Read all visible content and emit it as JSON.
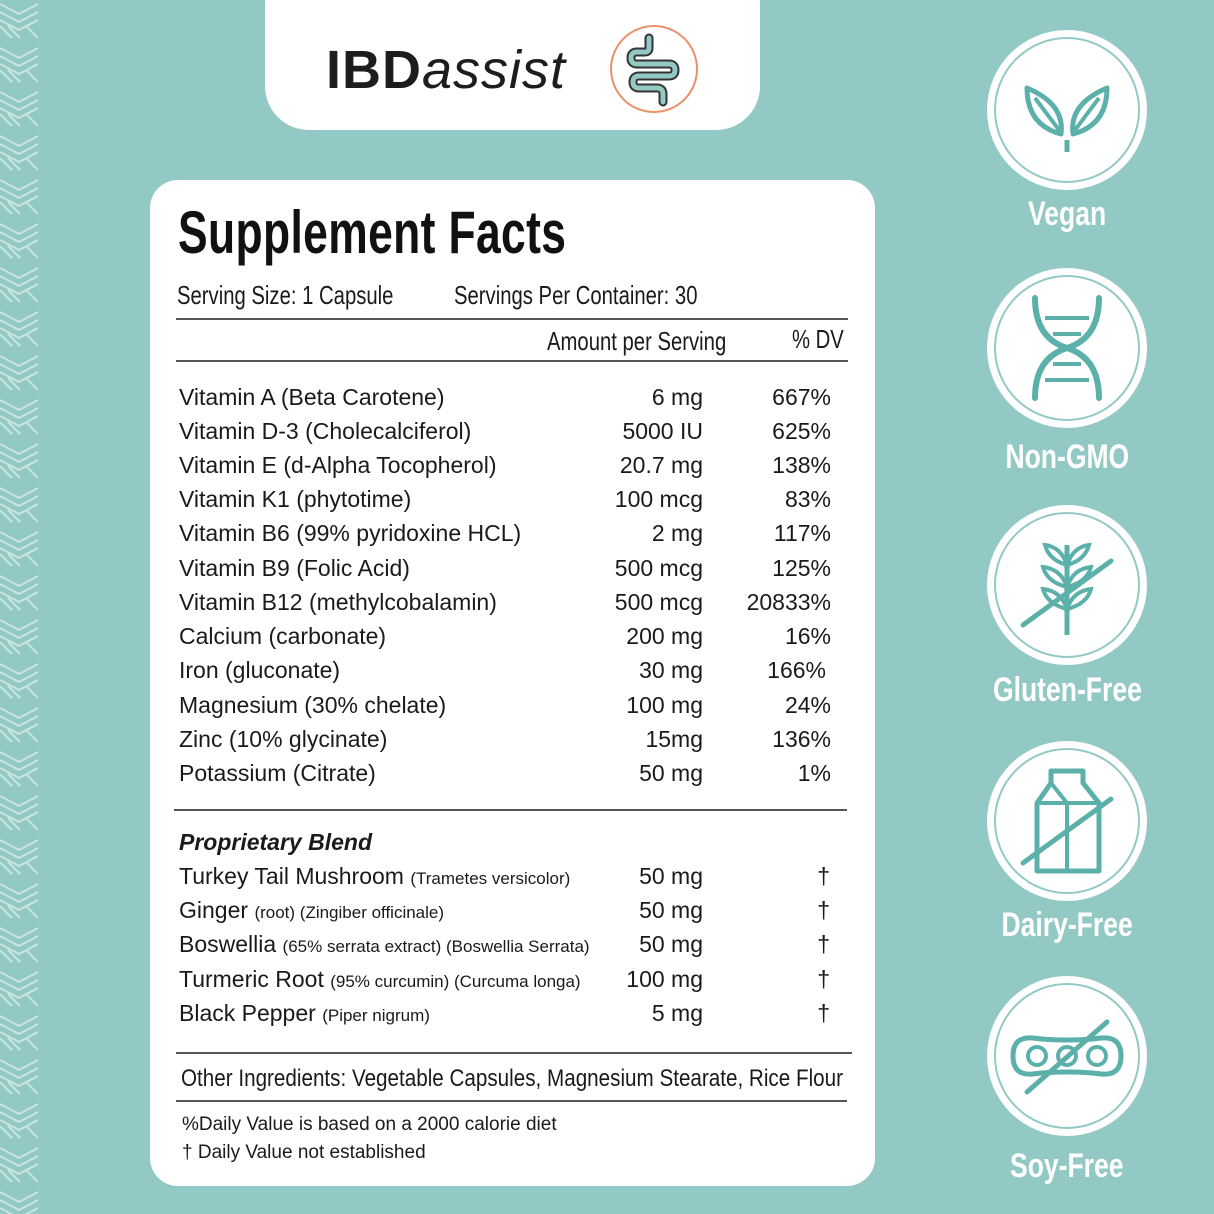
{
  "brand": {
    "name_bold": "IBD",
    "name_italic": "assist",
    "logo_icon": "intestine-icon",
    "colors": {
      "teal": "#93c9c5",
      "accent": "#e8906a",
      "dark": "#1a1a1a"
    }
  },
  "facts": {
    "title": "Supplement Facts",
    "serving_size": "Serving Size: 1 Capsule",
    "servings_per_container": "Servings Per Container: 30",
    "col_amount": "Amount per Serving",
    "col_dv": "% DV",
    "nutrients": [
      {
        "name": "Vitamin A (Beta Carotene)",
        "amount": "6 mg",
        "dv": "667%"
      },
      {
        "name": "Vitamin D-3 (Cholecalciferol)",
        "amount": "5000 IU",
        "dv": "625%"
      },
      {
        "name": "Vitamin E (d-Alpha Tocopherol)",
        "amount": "20.7 mg",
        "dv": "138%"
      },
      {
        "name": "Vitamin K1 (phytotime)",
        "amount": "100 mcg",
        "dv": "83%"
      },
      {
        "name": "Vitamin B6 (99% pyridoxine HCL)",
        "amount": "2 mg",
        "dv": "117%"
      },
      {
        "name": "Vitamin B9 (Folic Acid)",
        "amount": "500 mcg",
        "dv": "125%"
      },
      {
        "name": "Vitamin B12 (methylcobalamin)",
        "amount": "500 mcg",
        "dv": "20833%"
      },
      {
        "name": "Calcium (carbonate)",
        "amount": "200 mg",
        "dv": "16%"
      },
      {
        "name": "Iron (gluconate)",
        "amount": "30 mg",
        "dv": "166%"
      },
      {
        "name": "Magnesium (30% chelate)",
        "amount": "100 mg",
        "dv": "24%"
      },
      {
        "name": "Zinc (10% glycinate)",
        "amount": "15mg",
        "dv": "136%"
      },
      {
        "name": "Potassium (Citrate)",
        "amount": "50 mg",
        "dv": "1%"
      }
    ],
    "blend_title": "Proprietary Blend",
    "blend": [
      {
        "name": "Turkey Tail Mushroom",
        "detail": "(Trametes versicolor)",
        "amount": "50 mg",
        "dv": "†"
      },
      {
        "name": "Ginger",
        "detail": "(root)  (Zingiber officinale)",
        "amount": "50 mg",
        "dv": "†"
      },
      {
        "name": "Boswellia",
        "detail": "(65% serrata extract)  (Boswellia Serrata)",
        "amount": "50 mg",
        "dv": "†"
      },
      {
        "name": "Turmeric Root",
        "detail": "(95% curcumin) (Curcuma longa)",
        "amount": "100 mg",
        "dv": "†"
      },
      {
        "name": "Black Pepper",
        "detail": "(Piper nigrum)",
        "amount": "5 mg",
        "dv": "†"
      }
    ],
    "other_ingredients": "Other Ingredients:  Vegetable Capsules, Magnesium Stearate, Rice Flour",
    "footnote_1": "%Daily Value is based on a 2000 calorie diet",
    "footnote_2": "† Daily Value not established"
  },
  "badges": [
    {
      "label": "Vegan",
      "icon": "leaf-icon"
    },
    {
      "label": "Non-GMO",
      "icon": "dna-icon"
    },
    {
      "label": "Gluten-Free",
      "icon": "wheat-crossed-icon"
    },
    {
      "label": "Dairy-Free",
      "icon": "milk-carton-crossed-icon"
    },
    {
      "label": "Soy-Free",
      "icon": "soybean-crossed-icon"
    }
  ]
}
